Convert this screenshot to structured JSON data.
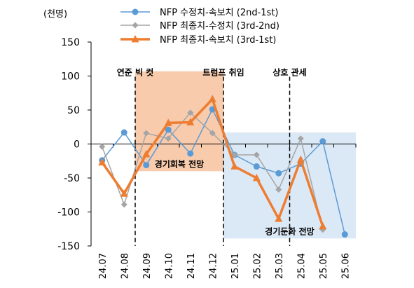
{
  "chart_data": {
    "type": "line",
    "unit_label": "(천명)",
    "categories": [
      "24.07",
      "24.08",
      "24.09",
      "24.10",
      "24.11",
      "24.12",
      "25.01",
      "25.02",
      "25.03",
      "25.04",
      "25.05",
      "25.06"
    ],
    "ylim": [
      -150,
      150
    ],
    "yticks": [
      150,
      100,
      50,
      0,
      -50,
      -100,
      -150
    ],
    "series": [
      {
        "name": "NFP 수정치-속보치 (2nd-1st)",
        "color": "#5b9bd5",
        "marker": "circle",
        "values": [
          -24,
          17,
          -31,
          21,
          -14,
          51,
          -16,
          -33,
          -43,
          -29,
          4,
          -133
        ]
      },
      {
        "name": "NFP 최종치-수정치 (3rd-2nd)",
        "color": "#a5a5a5",
        "marker": "diamond",
        "values": [
          -4,
          -89,
          16,
          8,
          46,
          16,
          -16,
          -16,
          -67,
          8,
          -126,
          null
        ]
      },
      {
        "name": "NFP 최종치-속보치 (3rd-1st)",
        "color": "#ed7d31",
        "marker": "triangle",
        "values": [
          -27,
          -73,
          -15,
          31,
          32,
          66,
          -33,
          -50,
          -110,
          -23,
          -121,
          null
        ]
      }
    ],
    "shaded_regions": [
      {
        "from": "24.09",
        "to": "25.01",
        "y_range": [
          -40,
          107
        ],
        "color": "#f8cbad",
        "label": "경기회복 전망"
      },
      {
        "from": "25.01",
        "to": "25.06",
        "y_range": [
          -139,
          17
        ],
        "color": "#dbe8f5",
        "label": "경기둔화 전망"
      }
    ],
    "event_markers": [
      {
        "at": "24.09",
        "label": "연준 빅 컷"
      },
      {
        "at": "25.01",
        "label": "트럼프 취임"
      },
      {
        "at": "25.04",
        "label": "상호 관세"
      }
    ],
    "legend_position": "top-center",
    "grid": false
  }
}
